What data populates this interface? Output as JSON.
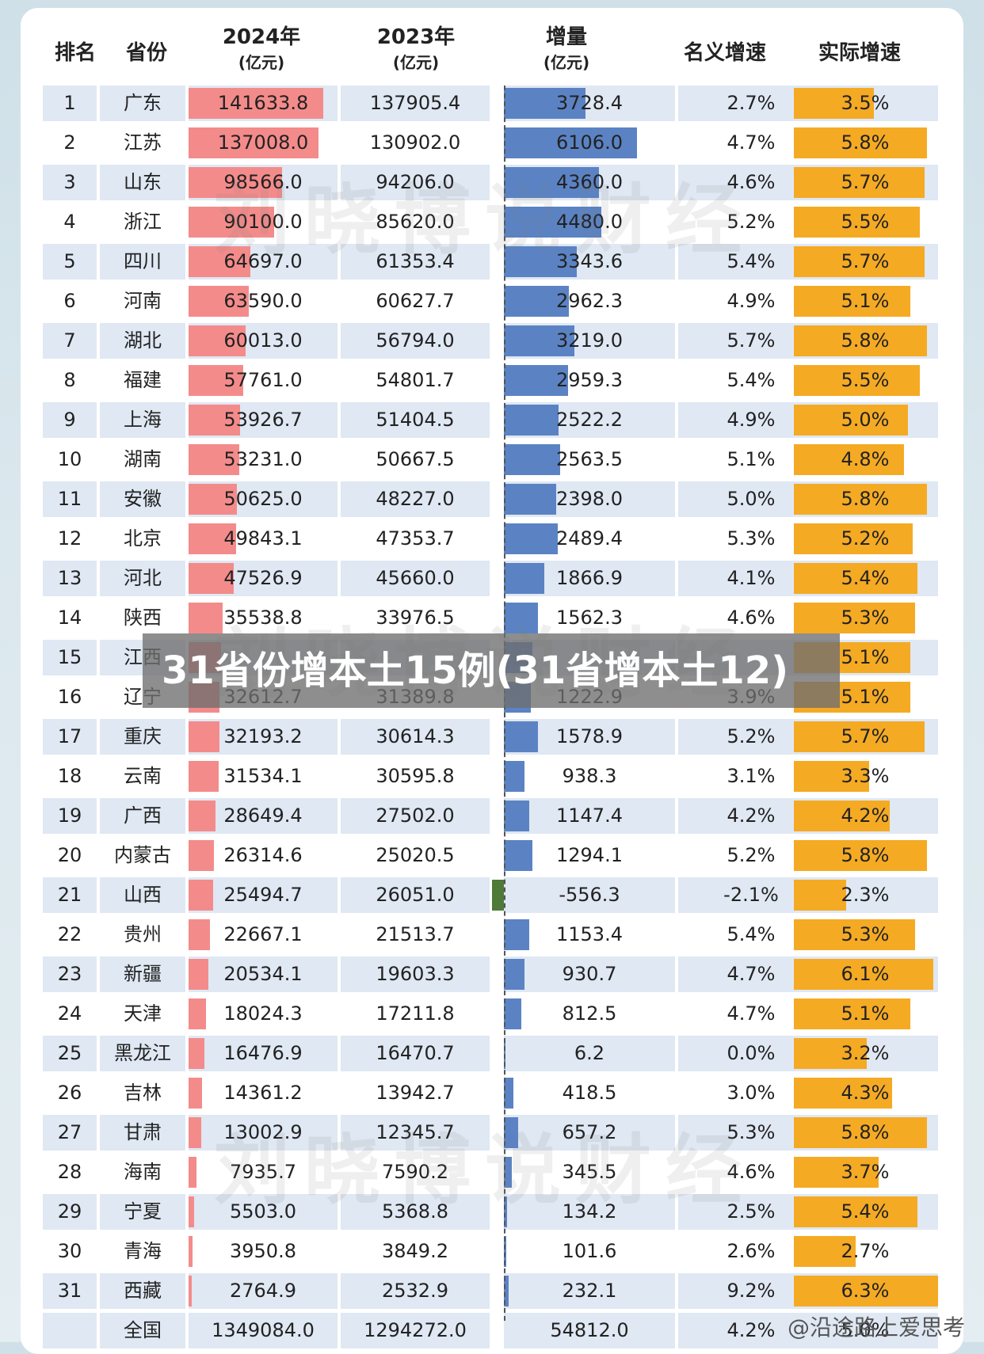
{
  "chart_data": {
    "type": "table",
    "columns": [
      {
        "line1": "排名",
        "line2": ""
      },
      {
        "line1": "省份",
        "line2": ""
      },
      {
        "line1": "2024年",
        "line2": "(亿元)"
      },
      {
        "line1": "2023年",
        "line2": "(亿元)"
      },
      {
        "line1": "增量",
        "line2": "(亿元)"
      },
      {
        "line1": "名义增速",
        "line2": ""
      },
      {
        "line1": "实际增速",
        "line2": ""
      }
    ],
    "rows": [
      {
        "rank": "1",
        "province": "广东",
        "gdp2024": "141633.8",
        "gdp2023": "137905.4",
        "increase": "3728.4",
        "nominal": "2.7%",
        "real": "3.5%"
      },
      {
        "rank": "2",
        "province": "江苏",
        "gdp2024": "137008.0",
        "gdp2023": "130902.0",
        "increase": "6106.0",
        "nominal": "4.7%",
        "real": "5.8%"
      },
      {
        "rank": "3",
        "province": "山东",
        "gdp2024": "98566.0",
        "gdp2023": "94206.0",
        "increase": "4360.0",
        "nominal": "4.6%",
        "real": "5.7%"
      },
      {
        "rank": "4",
        "province": "浙江",
        "gdp2024": "90100.0",
        "gdp2023": "85620.0",
        "increase": "4480.0",
        "nominal": "5.2%",
        "real": "5.5%"
      },
      {
        "rank": "5",
        "province": "四川",
        "gdp2024": "64697.0",
        "gdp2023": "61353.4",
        "increase": "3343.6",
        "nominal": "5.4%",
        "real": "5.7%"
      },
      {
        "rank": "6",
        "province": "河南",
        "gdp2024": "63590.0",
        "gdp2023": "60627.7",
        "increase": "2962.3",
        "nominal": "4.9%",
        "real": "5.1%"
      },
      {
        "rank": "7",
        "province": "湖北",
        "gdp2024": "60013.0",
        "gdp2023": "56794.0",
        "increase": "3219.0",
        "nominal": "5.7%",
        "real": "5.8%"
      },
      {
        "rank": "8",
        "province": "福建",
        "gdp2024": "57761.0",
        "gdp2023": "54801.7",
        "increase": "2959.3",
        "nominal": "5.4%",
        "real": "5.5%"
      },
      {
        "rank": "9",
        "province": "上海",
        "gdp2024": "53926.7",
        "gdp2023": "51404.5",
        "increase": "2522.2",
        "nominal": "4.9%",
        "real": "5.0%"
      },
      {
        "rank": "10",
        "province": "湖南",
        "gdp2024": "53231.0",
        "gdp2023": "50667.5",
        "increase": "2563.5",
        "nominal": "5.1%",
        "real": "4.8%"
      },
      {
        "rank": "11",
        "province": "安徽",
        "gdp2024": "50625.0",
        "gdp2023": "48227.0",
        "increase": "2398.0",
        "nominal": "5.0%",
        "real": "5.8%"
      },
      {
        "rank": "12",
        "province": "北京",
        "gdp2024": "49843.1",
        "gdp2023": "47353.7",
        "increase": "2489.4",
        "nominal": "5.3%",
        "real": "5.2%"
      },
      {
        "rank": "13",
        "province": "河北",
        "gdp2024": "47526.9",
        "gdp2023": "45660.0",
        "increase": "1866.9",
        "nominal": "4.1%",
        "real": "5.4%"
      },
      {
        "rank": "14",
        "province": "陕西",
        "gdp2024": "35538.8",
        "gdp2023": "33976.5",
        "increase": "1562.3",
        "nominal": "4.6%",
        "real": "5.3%"
      },
      {
        "rank": "15",
        "province": "江西",
        "gdp2024": "",
        "gdp2023": "",
        "increase": "",
        "nominal": "",
        "real": "5.1%"
      },
      {
        "rank": "16",
        "province": "辽宁",
        "gdp2024": "32612.7",
        "gdp2023": "31389.8",
        "increase": "1222.9",
        "nominal": "3.9%",
        "real": "5.1%"
      },
      {
        "rank": "17",
        "province": "重庆",
        "gdp2024": "32193.2",
        "gdp2023": "30614.3",
        "increase": "1578.9",
        "nominal": "5.2%",
        "real": "5.7%"
      },
      {
        "rank": "18",
        "province": "云南",
        "gdp2024": "31534.1",
        "gdp2023": "30595.8",
        "increase": "938.3",
        "nominal": "3.1%",
        "real": "3.3%"
      },
      {
        "rank": "19",
        "province": "广西",
        "gdp2024": "28649.4",
        "gdp2023": "27502.0",
        "increase": "1147.4",
        "nominal": "4.2%",
        "real": "4.2%"
      },
      {
        "rank": "20",
        "province": "内蒙古",
        "gdp2024": "26314.6",
        "gdp2023": "25020.5",
        "increase": "1294.1",
        "nominal": "5.2%",
        "real": "5.8%"
      },
      {
        "rank": "21",
        "province": "山西",
        "gdp2024": "25494.7",
        "gdp2023": "26051.0",
        "increase": "-556.3",
        "nominal": "-2.1%",
        "real": "2.3%"
      },
      {
        "rank": "22",
        "province": "贵州",
        "gdp2024": "22667.1",
        "gdp2023": "21513.7",
        "increase": "1153.4",
        "nominal": "5.4%",
        "real": "5.3%"
      },
      {
        "rank": "23",
        "province": "新疆",
        "gdp2024": "20534.1",
        "gdp2023": "19603.3",
        "increase": "930.7",
        "nominal": "4.7%",
        "real": "6.1%"
      },
      {
        "rank": "24",
        "province": "天津",
        "gdp2024": "18024.3",
        "gdp2023": "17211.8",
        "increase": "812.5",
        "nominal": "4.7%",
        "real": "5.1%"
      },
      {
        "rank": "25",
        "province": "黑龙江",
        "gdp2024": "16476.9",
        "gdp2023": "16470.7",
        "increase": "6.2",
        "nominal": "0.0%",
        "real": "3.2%"
      },
      {
        "rank": "26",
        "province": "吉林",
        "gdp2024": "14361.2",
        "gdp2023": "13942.7",
        "increase": "418.5",
        "nominal": "3.0%",
        "real": "4.3%"
      },
      {
        "rank": "27",
        "province": "甘肃",
        "gdp2024": "13002.9",
        "gdp2023": "12345.7",
        "increase": "657.2",
        "nominal": "5.3%",
        "real": "5.8%"
      },
      {
        "rank": "28",
        "province": "海南",
        "gdp2024": "7935.7",
        "gdp2023": "7590.2",
        "increase": "345.5",
        "nominal": "4.6%",
        "real": "3.7%"
      },
      {
        "rank": "29",
        "province": "宁夏",
        "gdp2024": "5503.0",
        "gdp2023": "5368.8",
        "increase": "134.2",
        "nominal": "2.5%",
        "real": "5.4%"
      },
      {
        "rank": "30",
        "province": "青海",
        "gdp2024": "3950.8",
        "gdp2023": "3849.2",
        "increase": "101.6",
        "nominal": "2.6%",
        "real": "2.7%"
      },
      {
        "rank": "31",
        "province": "西藏",
        "gdp2024": "2764.9",
        "gdp2023": "2532.9",
        "increase": "232.1",
        "nominal": "9.2%",
        "real": "6.3%"
      }
    ],
    "total": {
      "province": "全国",
      "gdp2024": "1349084.0",
      "gdp2023": "1294272.0",
      "increase": "54812.0",
      "nominal": "4.2%",
      "real": "5.0%"
    },
    "bar_values": {
      "gdp2024": [
        141633.8,
        137008.0,
        98566.0,
        90100.0,
        64697.0,
        63590.0,
        60013.0,
        57761.0,
        53926.7,
        53231.0,
        50625.0,
        49843.1,
        47526.9,
        35538.8,
        34200,
        32612.7,
        32193.2,
        31534.1,
        28649.4,
        26314.6,
        25494.7,
        22667.1,
        20534.1,
        18024.3,
        16476.9,
        14361.2,
        13002.9,
        7935.7,
        5503.0,
        3950.8,
        2764.9
      ],
      "increase": [
        3728.4,
        6106.0,
        4360.0,
        4480.0,
        3343.6,
        2962.3,
        3219.0,
        2959.3,
        2522.2,
        2563.5,
        2398.0,
        2489.4,
        1866.9,
        1562.3,
        1300,
        1222.9,
        1578.9,
        938.3,
        1147.4,
        1294.1,
        -556.3,
        1153.4,
        930.7,
        812.5,
        6.2,
        418.5,
        657.2,
        345.5,
        134.2,
        101.6,
        232.1
      ],
      "real": [
        3.5,
        5.8,
        5.7,
        5.5,
        5.7,
        5.1,
        5.8,
        5.5,
        5.0,
        4.8,
        5.8,
        5.2,
        5.4,
        5.3,
        5.1,
        5.1,
        5.7,
        3.3,
        4.2,
        5.8,
        2.3,
        5.3,
        6.1,
        5.1,
        3.2,
        4.3,
        5.8,
        3.7,
        5.4,
        2.7,
        6.3
      ]
    },
    "colors": {
      "gdp2024": "#f48b8b",
      "increase": "#5b83c4",
      "negative": "#4e7a3a",
      "real": "#f5aa24",
      "stripe": "#dfe8f3",
      "stripe_alt": "#ffffff"
    }
  },
  "watermark": "刘晓博说财经",
  "banner": "31省份增本土15例(31省增本土12)",
  "credit": "@沿途路上爱思考"
}
